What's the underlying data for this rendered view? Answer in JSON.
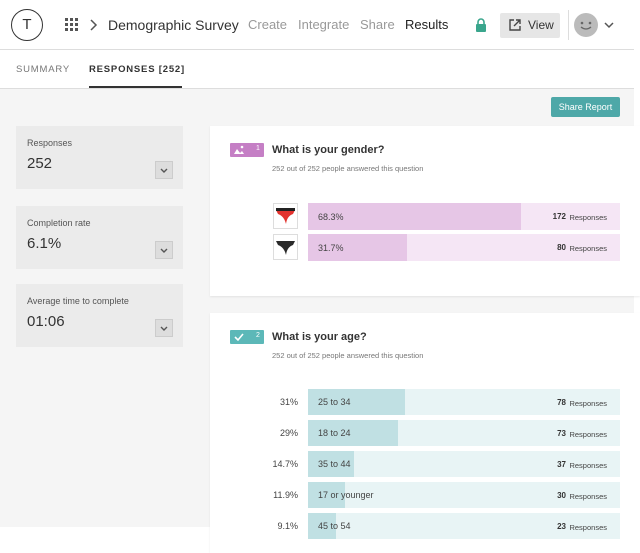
{
  "header": {
    "logo": "T",
    "survey_title": "Demographic Survey",
    "nav": [
      "Create",
      "Integrate",
      "Share",
      "Results"
    ],
    "view_button": "View"
  },
  "tabs": [
    "SUMMARY",
    "RESPONSES [252]"
  ],
  "share_button": "Share Report",
  "stats": [
    {
      "label": "Responses",
      "value": "252"
    },
    {
      "label": "Completion rate",
      "value": "6.1%"
    },
    {
      "label": "Average time to complete",
      "value": "01:06"
    }
  ],
  "count_unit": "Responses",
  "questions": [
    {
      "number": "1",
      "title": "What is your gender?",
      "answered": "252 out of 252 people answered this question",
      "answers": [
        {
          "percent": {
            "value": 68.3,
            "label": "68.3%"
          },
          "count": 172
        },
        {
          "percent": {
            "value": 31.7,
            "label": "31.7%"
          },
          "count": 80
        }
      ]
    },
    {
      "number": "2",
      "title": "What is your age?",
      "answered": "252 out of 252 people answered this question",
      "answers": [
        {
          "percent": {
            "value": 31,
            "label": "31%"
          },
          "option": "25 to 34",
          "count": 78
        },
        {
          "percent": {
            "value": 29,
            "label": "29%"
          },
          "option": "18 to 24",
          "count": 73
        },
        {
          "percent": {
            "value": 14.7,
            "label": "14.7%"
          },
          "option": "35 to 44",
          "count": 37
        },
        {
          "percent": {
            "value": 11.9,
            "label": "11.9%"
          },
          "option": "17 or younger",
          "count": 30
        },
        {
          "percent": {
            "value": 9.1,
            "label": "9.1%"
          },
          "option": "45 to 54",
          "count": 23
        }
      ]
    }
  ]
}
